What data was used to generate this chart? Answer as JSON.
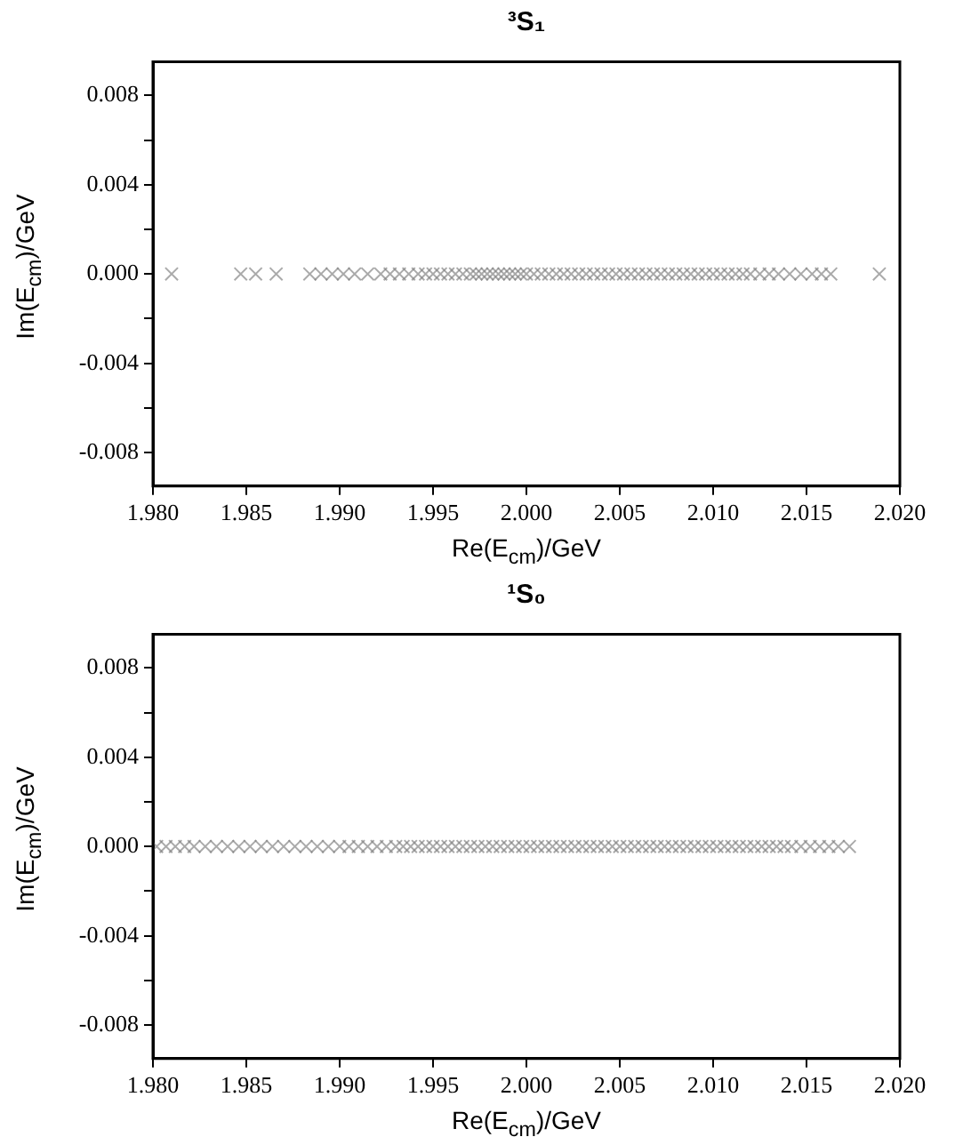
{
  "chart_data": [
    {
      "type": "scatter",
      "title": "³S₁",
      "xlabel": "Re(E$_{cm}$)/GeV",
      "ylabel": "Im(E$_{cm}$)/GeV",
      "marker": "cross",
      "legend": false,
      "grid": false,
      "xlim": [
        1.98,
        2.02
      ],
      "xticks": [
        {
          "value": 1.98,
          "label": "1.980"
        },
        {
          "value": 1.985,
          "label": "1.985"
        },
        {
          "value": 1.99,
          "label": "1.990"
        },
        {
          "value": 1.995,
          "label": "1.995"
        },
        {
          "value": 2.0,
          "label": "2.000"
        },
        {
          "value": 2.005,
          "label": "2.005"
        },
        {
          "value": 2.01,
          "label": "2.010"
        },
        {
          "value": 2.015,
          "label": "2.015"
        },
        {
          "value": 2.02,
          "label": "2.020"
        }
      ],
      "ylim": [
        -0.0095,
        0.0095
      ],
      "yticks": [
        {
          "value": -0.008,
          "label": "-0.008"
        },
        {
          "value": -0.006,
          "label": null
        },
        {
          "value": -0.004,
          "label": "-0.004"
        },
        {
          "value": -0.002,
          "label": null
        },
        {
          "value": 0,
          "label": "0.000"
        },
        {
          "value": 0.002,
          "label": null
        },
        {
          "value": 0.004,
          "label": "0.004"
        },
        {
          "value": 0.006,
          "label": null
        },
        {
          "value": 0.008,
          "label": "0.008"
        }
      ],
      "series": [
        {
          "color": "#7f7f7f",
          "x": [
            1.981,
            1.9847,
            1.9855,
            1.9866,
            1.9884,
            1.989,
            1.9896,
            1.9902,
            1.9908,
            1.9915,
            1.9922,
            1.9927,
            1.9932,
            1.9937,
            1.9942,
            1.9946,
            1.995,
            1.9954,
            1.9958,
            1.9962,
            1.9966,
            1.997,
            1.9973,
            1.9976,
            1.9979,
            1.9982,
            1.9985,
            1.9988,
            1.9991,
            1.9994,
            1.9997,
            2.0,
            2.0004,
            2.0008,
            2.0012,
            2.0016,
            2.002,
            2.0024,
            2.0028,
            2.0032,
            2.0036,
            2.004,
            2.0044,
            2.0048,
            2.0052,
            2.0056,
            2.006,
            2.0064,
            2.0068,
            2.0072,
            2.0076,
            2.008,
            2.0084,
            2.0088,
            2.0092,
            2.0096,
            2.01,
            2.0104,
            2.0108,
            2.0112,
            2.0116,
            2.012,
            2.0125,
            2.013,
            2.0135,
            2.0141,
            2.0147,
            2.0153,
            2.0158,
            2.0163,
            2.0189
          ],
          "values": [
            0,
            0,
            0,
            0,
            0,
            0,
            0,
            0,
            0,
            0,
            0,
            0,
            0,
            0,
            0,
            0,
            0,
            0,
            0,
            0,
            0,
            0,
            0,
            0,
            0,
            0,
            0,
            0,
            0,
            0,
            0,
            0,
            0,
            0,
            0,
            0,
            0,
            0,
            0,
            0,
            0,
            0,
            0,
            0,
            0,
            0,
            0,
            0,
            0,
            0,
            0,
            0,
            0,
            0,
            0,
            0,
            0,
            0,
            0,
            0,
            0,
            0,
            0,
            0,
            0,
            0,
            0,
            0,
            0,
            0,
            0
          ]
        }
      ]
    },
    {
      "type": "scatter",
      "title": "¹S₀",
      "xlabel": "Re(E$_{cm}$)/GeV",
      "ylabel": "Im(E$_{cm}$)/GeV",
      "marker": "cross",
      "legend": false,
      "grid": false,
      "xlim": [
        1.98,
        2.02
      ],
      "xticks": [
        {
          "value": 1.98,
          "label": "1.980"
        },
        {
          "value": 1.985,
          "label": "1.985"
        },
        {
          "value": 1.99,
          "label": "1.990"
        },
        {
          "value": 1.995,
          "label": "1.995"
        },
        {
          "value": 2.0,
          "label": "2.000"
        },
        {
          "value": 2.005,
          "label": "2.005"
        },
        {
          "value": 2.01,
          "label": "2.010"
        },
        {
          "value": 2.015,
          "label": "2.015"
        },
        {
          "value": 2.02,
          "label": "2.020"
        }
      ],
      "ylim": [
        -0.0095,
        0.0095
      ],
      "yticks": [
        {
          "value": -0.008,
          "label": "-0.008"
        },
        {
          "value": -0.006,
          "label": null
        },
        {
          "value": -0.004,
          "label": "-0.004"
        },
        {
          "value": -0.002,
          "label": null
        },
        {
          "value": 0,
          "label": "0.000"
        },
        {
          "value": 0.002,
          "label": null
        },
        {
          "value": 0.004,
          "label": "0.004"
        },
        {
          "value": 0.006,
          "label": null
        },
        {
          "value": 0.008,
          "label": "0.008"
        }
      ],
      "series": [
        {
          "color": "#7f7f7f",
          "x": [
            1.9802,
            1.9807,
            1.9812,
            1.9817,
            1.9822,
            1.9828,
            1.9834,
            1.984,
            1.9846,
            1.9852,
            1.9858,
            1.9864,
            1.987,
            1.9876,
            1.9882,
            1.9888,
            1.9894,
            1.99,
            1.9905,
            1.991,
            1.9915,
            1.992,
            1.9925,
            1.993,
            1.9934,
            1.9938,
            1.9942,
            1.9946,
            1.995,
            1.9954,
            1.9958,
            1.9962,
            1.9966,
            1.997,
            1.9974,
            1.9978,
            1.9982,
            1.9986,
            1.999,
            1.9994,
            1.9998,
            2.0002,
            2.0006,
            2.001,
            2.0014,
            2.0018,
            2.0022,
            2.0026,
            2.003,
            2.0034,
            2.0038,
            2.0042,
            2.0046,
            2.005,
            2.0054,
            2.0058,
            2.0062,
            2.0066,
            2.007,
            2.0074,
            2.0078,
            2.0082,
            2.0086,
            2.009,
            2.0094,
            2.0098,
            2.0102,
            2.0106,
            2.011,
            2.0114,
            2.0118,
            2.0122,
            2.0126,
            2.013,
            2.0134,
            2.0138,
            2.0142,
            2.0147,
            2.0152,
            2.0157,
            2.0162,
            2.0167,
            2.0173
          ],
          "values": [
            0,
            0,
            0,
            0,
            0,
            0,
            0,
            0,
            0,
            0,
            0,
            0,
            0,
            0,
            0,
            0,
            0,
            0,
            0,
            0,
            0,
            0,
            0,
            0,
            0,
            0,
            0,
            0,
            0,
            0,
            0,
            0,
            0,
            0,
            0,
            0,
            0,
            0,
            0,
            0,
            0,
            0,
            0,
            0,
            0,
            0,
            0,
            0,
            0,
            0,
            0,
            0,
            0,
            0,
            0,
            0,
            0,
            0,
            0,
            0,
            0,
            0,
            0,
            0,
            0,
            0,
            0,
            0,
            0,
            0,
            0,
            0,
            0,
            0,
            0,
            0,
            0,
            0,
            0,
            0,
            0,
            0,
            0
          ]
        }
      ]
    }
  ]
}
